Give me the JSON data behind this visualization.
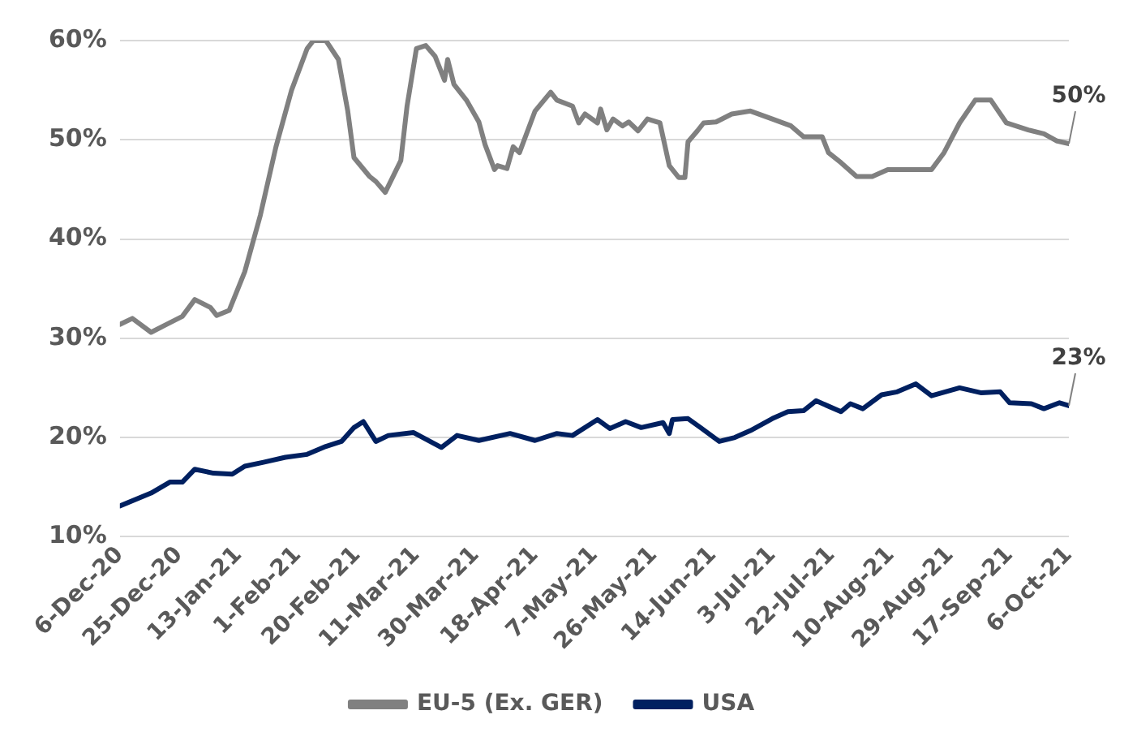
{
  "chart_data": {
    "type": "line",
    "xlim": [
      "2020-12-06",
      "2021-10-06"
    ],
    "xticks": [
      {
        "value": "2020-12-06",
        "label": "6-Dec-20"
      },
      {
        "value": "2020-12-25",
        "label": "25-Dec-20"
      },
      {
        "value": "2021-01-13",
        "label": "13-Jan-21"
      },
      {
        "value": "2021-02-01",
        "label": "1-Feb-21"
      },
      {
        "value": "2021-02-20",
        "label": "20-Feb-21"
      },
      {
        "value": "2021-03-11",
        "label": "11-Mar-21"
      },
      {
        "value": "2021-03-30",
        "label": "30-Mar-21"
      },
      {
        "value": "2021-04-18",
        "label": "18-Apr-21"
      },
      {
        "value": "2021-05-07",
        "label": "7-May-21"
      },
      {
        "value": "2021-05-26",
        "label": "26-May-21"
      },
      {
        "value": "2021-06-14",
        "label": "14-Jun-21"
      },
      {
        "value": "2021-07-03",
        "label": "3-Jul-21"
      },
      {
        "value": "2021-07-22",
        "label": "22-Jul-21"
      },
      {
        "value": "2021-08-10",
        "label": "10-Aug-21"
      },
      {
        "value": "2021-08-29",
        "label": "29-Aug-21"
      },
      {
        "value": "2021-09-17",
        "label": "17-Sep-21"
      },
      {
        "value": "2021-10-06",
        "label": "6-Oct-21"
      }
    ],
    "ylim": [
      10,
      60
    ],
    "yticks": [
      {
        "value": 10,
        "label": "10%"
      },
      {
        "value": 20,
        "label": "20%"
      },
      {
        "value": 30,
        "label": "30%"
      },
      {
        "value": 40,
        "label": "40%"
      },
      {
        "value": 50,
        "label": "50%"
      },
      {
        "value": 60,
        "label": "60%"
      }
    ],
    "grid": "y",
    "legend": "bottom",
    "marker": "none",
    "line_style": "solid",
    "series": [
      {
        "name": "EU-5 (Ex. GER)",
        "color": "#808080",
        "x": [
          "2020-12-06",
          "2020-12-10",
          "2020-12-16",
          "2020-12-21",
          "2020-12-26",
          "2020-12-30",
          "2021-01-04",
          "2021-01-06",
          "2021-01-10",
          "2021-01-15",
          "2021-01-20",
          "2021-01-25",
          "2021-01-30",
          "2021-02-04",
          "2021-02-06",
          "2021-02-10",
          "2021-02-14",
          "2021-02-17",
          "2021-02-19",
          "2021-02-24",
          "2021-02-26",
          "2021-03-01",
          "2021-03-06",
          "2021-03-08",
          "2021-03-11",
          "2021-03-14",
          "2021-03-17",
          "2021-03-20",
          "2021-03-21",
          "2021-03-23",
          "2021-03-27",
          "2021-03-31",
          "2021-04-02",
          "2021-04-05",
          "2021-04-06",
          "2021-04-09",
          "2021-04-11",
          "2021-04-13",
          "2021-04-18",
          "2021-04-23",
          "2021-04-25",
          "2021-04-30",
          "2021-05-02",
          "2021-05-04",
          "2021-05-08",
          "2021-05-09",
          "2021-05-11",
          "2021-05-13",
          "2021-05-16",
          "2021-05-18",
          "2021-05-21",
          "2021-05-24",
          "2021-05-28",
          "2021-05-31",
          "2021-06-03",
          "2021-06-05",
          "2021-06-06",
          "2021-06-09",
          "2021-06-11",
          "2021-06-15",
          "2021-06-20",
          "2021-06-26",
          "2021-07-03",
          "2021-07-09",
          "2021-07-13",
          "2021-07-19",
          "2021-07-21",
          "2021-07-25",
          "2021-07-30",
          "2021-08-04",
          "2021-08-09",
          "2021-08-15",
          "2021-08-23",
          "2021-08-27",
          "2021-09-01",
          "2021-09-06",
          "2021-09-11",
          "2021-09-16",
          "2021-09-23",
          "2021-09-28",
          "2021-10-02",
          "2021-10-06"
        ],
        "values": [
          31.4,
          32.0,
          30.6,
          31.4,
          32.2,
          33.9,
          33.1,
          32.3,
          32.8,
          36.7,
          42.4,
          49.3,
          55,
          59.2,
          60,
          60,
          58.1,
          52.9,
          48.2,
          46.3,
          45.8,
          44.7,
          47.9,
          53.4,
          59.2,
          59.5,
          58.4,
          56,
          58.1,
          55.6,
          54,
          51.8,
          49.5,
          47,
          47.4,
          47.1,
          49.3,
          48.7,
          52.9,
          54.8,
          54,
          53.4,
          51.7,
          52.6,
          51.7,
          53.1,
          51,
          52.1,
          51.4,
          51.8,
          50.9,
          52.1,
          51.7,
          47.4,
          46.2,
          46.2,
          49.8,
          50.9,
          51.7,
          51.8,
          52.6,
          52.9,
          52.1,
          51.4,
          50.3,
          50.3,
          48.7,
          47.7,
          46.3,
          46.3,
          47,
          47,
          47,
          48.7,
          51.7,
          54,
          54,
          51.7,
          51,
          50.6,
          49.9,
          49.6
        ]
      },
      {
        "name": "USA",
        "color": "#002060",
        "x": [
          "2020-12-06",
          "2020-12-16",
          "2020-12-22",
          "2020-12-26",
          "2020-12-30",
          "2021-01-05",
          "2021-01-11",
          "2021-01-15",
          "2021-01-21",
          "2021-01-28",
          "2021-02-04",
          "2021-02-10",
          "2021-02-15",
          "2021-02-19",
          "2021-02-22",
          "2021-02-26",
          "2021-03-02",
          "2021-03-10",
          "2021-03-19",
          "2021-03-24",
          "2021-03-31",
          "2021-04-10",
          "2021-04-18",
          "2021-04-25",
          "2021-04-30",
          "2021-05-08",
          "2021-05-12",
          "2021-05-17",
          "2021-05-22",
          "2021-05-29",
          "2021-05-31",
          "2021-06-01",
          "2021-06-06",
          "2021-06-10",
          "2021-06-16",
          "2021-06-21",
          "2021-06-26",
          "2021-07-03",
          "2021-07-08",
          "2021-07-13",
          "2021-07-17",
          "2021-07-25",
          "2021-07-28",
          "2021-08-01",
          "2021-08-07",
          "2021-08-12",
          "2021-08-18",
          "2021-08-23",
          "2021-09-01",
          "2021-09-08",
          "2021-09-14",
          "2021-09-17",
          "2021-09-24",
          "2021-09-28",
          "2021-10-03",
          "2021-10-06"
        ],
        "values": [
          13.1,
          14.4,
          15.5,
          15.5,
          16.8,
          16.4,
          16.3,
          17.1,
          17.5,
          18,
          18.3,
          19.1,
          19.6,
          21,
          21.6,
          19.6,
          20.2,
          20.5,
          19,
          20.2,
          19.7,
          20.4,
          19.7,
          20.4,
          20.2,
          21.8,
          20.9,
          21.6,
          21,
          21.5,
          20.4,
          21.8,
          21.9,
          21,
          19.6,
          20,
          20.7,
          21.9,
          22.6,
          22.7,
          23.7,
          22.6,
          23.4,
          22.9,
          24.3,
          24.6,
          25.4,
          24.2,
          25,
          24.5,
          24.6,
          23.5,
          23.4,
          22.9,
          23.5,
          23.2
        ]
      }
    ],
    "annotations": [
      {
        "text": "50%",
        "x": "2021-10-06",
        "y": 49.6
      },
      {
        "text": "23%",
        "x": "2021-10-06",
        "y": 23.2
      }
    ]
  }
}
